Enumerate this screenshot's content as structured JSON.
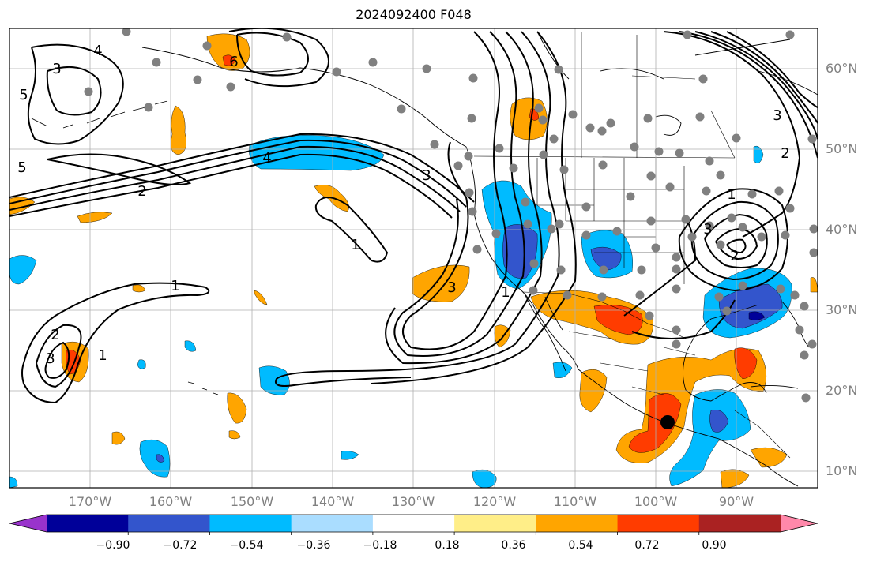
{
  "title": "2024092400 F048",
  "lat_labels": [
    "60°N",
    "50°N",
    "40°N",
    "30°N",
    "20°N",
    "10°N"
  ],
  "lon_labels": [
    "170°W",
    "160°W",
    "150°W",
    "140°W",
    "130°W",
    "120°W",
    "110°W",
    "100°W",
    "90°W"
  ],
  "contour_labels": [
    "3",
    "4",
    "5",
    "5",
    "6",
    "2",
    "4",
    "1",
    "3",
    "1",
    "3",
    "2",
    "1",
    "3",
    "1",
    "3",
    "2",
    "3",
    "2",
    "1"
  ],
  "colorbar": {
    "ticks": [
      "−0.90",
      "−0.72",
      "−0.54",
      "−0.36",
      "−0.18",
      "0.18",
      "0.36",
      "0.54",
      "0.72",
      "0.90"
    ],
    "colors": [
      "#9933cc",
      "#000099",
      "#3355cc",
      "#00bbff",
      "#aaddff",
      "#ffffff",
      "#ffee88",
      "#ffa500",
      "#ff3c00",
      "#aa2222",
      "#ff88aa"
    ]
  },
  "colors": {
    "orange": "#ffa500",
    "red": "#ff3c00",
    "blue_light": "#00bbff",
    "blue_dark": "#3355cc",
    "navy": "#000099",
    "station": "#808080"
  }
}
